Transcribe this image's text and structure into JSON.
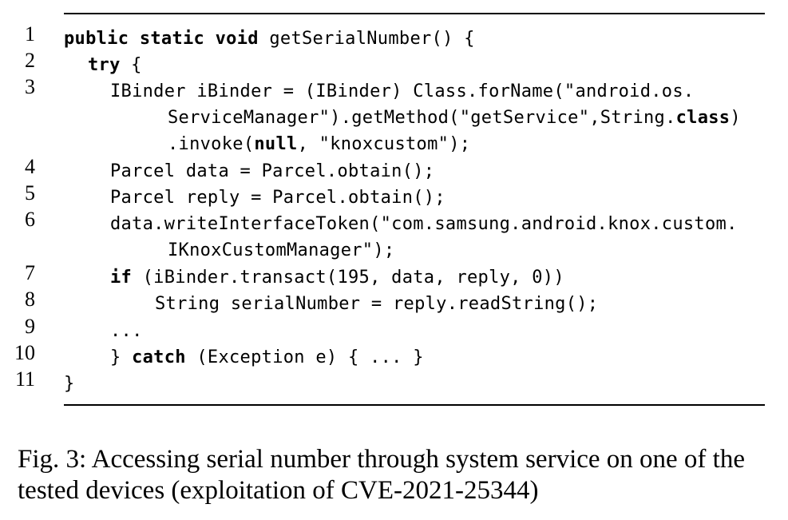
{
  "listing": {
    "lines": [
      {
        "num": "1",
        "segs": [
          {
            "t": "public static void",
            "kw": true
          },
          {
            "t": " getSerialNumber() {"
          }
        ]
      },
      {
        "num": "2",
        "segs": [
          {
            "t": "try",
            "kw": true
          },
          {
            "t": " {"
          }
        ]
      },
      {
        "num": "3",
        "segs": [
          {
            "t": "IBinder iBinder = (IBinder) Class.forName(\"android.os."
          }
        ]
      },
      {
        "num": "",
        "segs": [
          {
            "t": "ServiceManager\").getMethod(\"getService\",String."
          },
          {
            "t": "class",
            "kw": true
          },
          {
            "t": ")"
          }
        ]
      },
      {
        "num": "",
        "segs": [
          {
            "t": ".invoke("
          },
          {
            "t": "null",
            "kw": true
          },
          {
            "t": ", \"knoxcustom\");"
          }
        ]
      },
      {
        "num": "4",
        "segs": [
          {
            "t": "Parcel data = Parcel.obtain();"
          }
        ]
      },
      {
        "num": "5",
        "segs": [
          {
            "t": "Parcel reply = Parcel.obtain();"
          }
        ]
      },
      {
        "num": "6",
        "segs": [
          {
            "t": "data.writeInterfaceToken(\"com.samsung.android.knox.custom."
          }
        ]
      },
      {
        "num": "",
        "segs": [
          {
            "t": "IKnoxCustomManager\");"
          }
        ]
      },
      {
        "num": "7",
        "segs": [
          {
            "t": "if",
            "kw": true
          },
          {
            "t": " (iBinder.transact(195, data, reply, 0))"
          }
        ]
      },
      {
        "num": "8",
        "segs": [
          {
            "t": "String serialNumber = reply.readString();"
          }
        ]
      },
      {
        "num": "9",
        "segs": [
          {
            "t": "..."
          }
        ]
      },
      {
        "num": "10",
        "segs": [
          {
            "t": "} "
          },
          {
            "t": "catch",
            "kw": true
          },
          {
            "t": " (Exception e) { ... }"
          }
        ]
      },
      {
        "num": "11",
        "segs": [
          {
            "t": "}"
          }
        ]
      }
    ]
  },
  "caption": "Fig. 3: Accessing serial number through system service on one of the tested devices (exploitation of CVE-2021-25344)"
}
